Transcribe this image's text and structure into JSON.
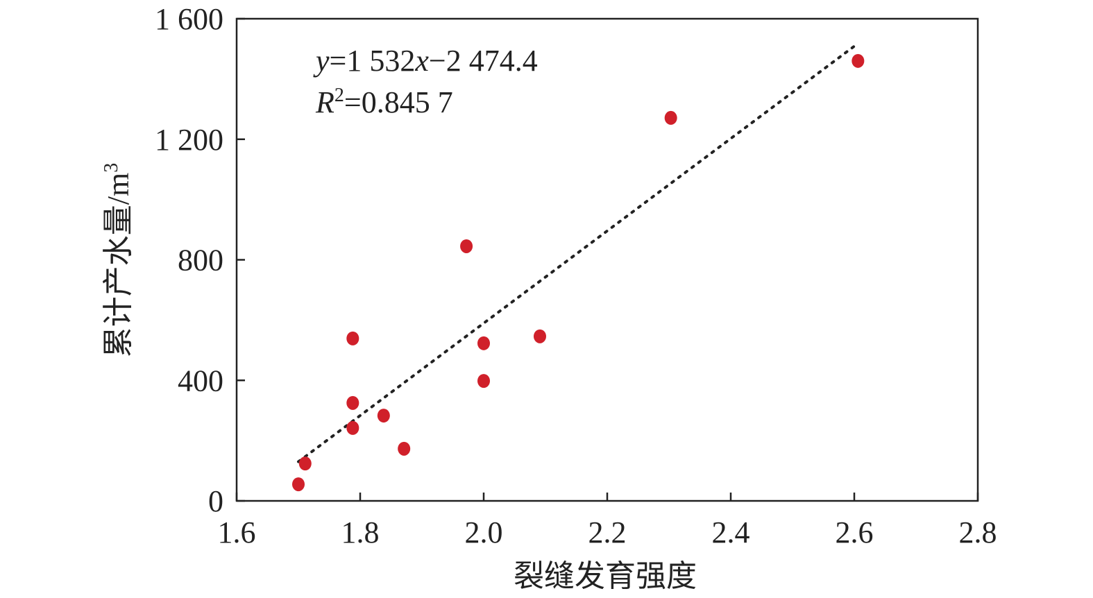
{
  "chart_data": {
    "type": "scatter",
    "x_label": "裂缝发育强度",
    "y_label": [
      "累计产水量/m",
      "3"
    ],
    "annotations": [
      [
        "y",
        "=1 532",
        "x",
        "−2 474.4"
      ],
      [
        "R",
        "2",
        "=0.845 7"
      ]
    ],
    "x": [
      1.7,
      1.711,
      1.788,
      1.788,
      1.788,
      1.838,
      1.871,
      1.972,
      2.0,
      2.0,
      2.091,
      2.303,
      2.606
    ],
    "series": [
      {
        "color": "#d0202a",
        "values": [
          55,
          124,
          539,
          325,
          242,
          283,
          173,
          845,
          523,
          398,
          546,
          1271,
          1460
        ]
      }
    ],
    "trendline": {
      "slope": 1532,
      "intercept": -2474.4,
      "xrange": [
        1.7,
        2.6
      ],
      "color": "#222222"
    },
    "xlim": [
      1.6,
      2.8
    ],
    "xticks": [
      1.6,
      1.8,
      {
        "value": 2,
        "label": "2.0"
      },
      2.2,
      2.4,
      2.6,
      2.8
    ],
    "ylim": [
      0,
      1600
    ],
    "yticks": [
      0,
      400,
      800,
      {
        "value": 1200,
        "label": "1 200"
      },
      {
        "value": 1600,
        "label": "1 600"
      }
    ],
    "grid": false
  }
}
